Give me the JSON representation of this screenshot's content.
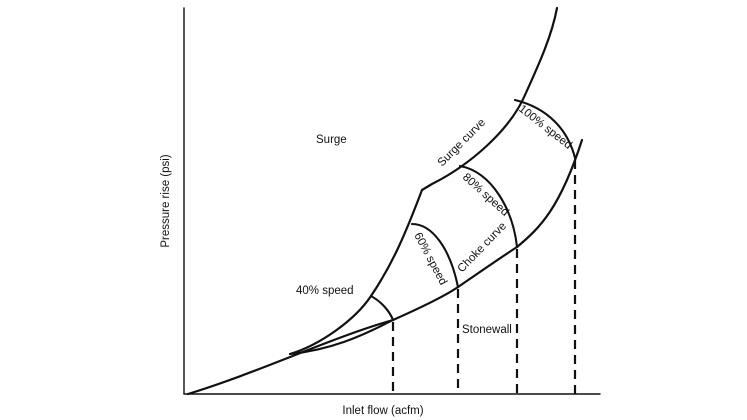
{
  "diagram": {
    "axes": {
      "x_label": "Inlet flow (acfm)",
      "y_label": "Pressure rise (psi)"
    },
    "regions": {
      "surge": "Surge",
      "stonewall": "Stonewall"
    },
    "curves": {
      "surge_curve": "Surge curve",
      "choke_curve": "Choke curve"
    },
    "speed_lines": [
      {
        "label": "40% speed"
      },
      {
        "label": "60% speed"
      },
      {
        "label": "80% speed"
      },
      {
        "label": "100% speed"
      }
    ]
  }
}
